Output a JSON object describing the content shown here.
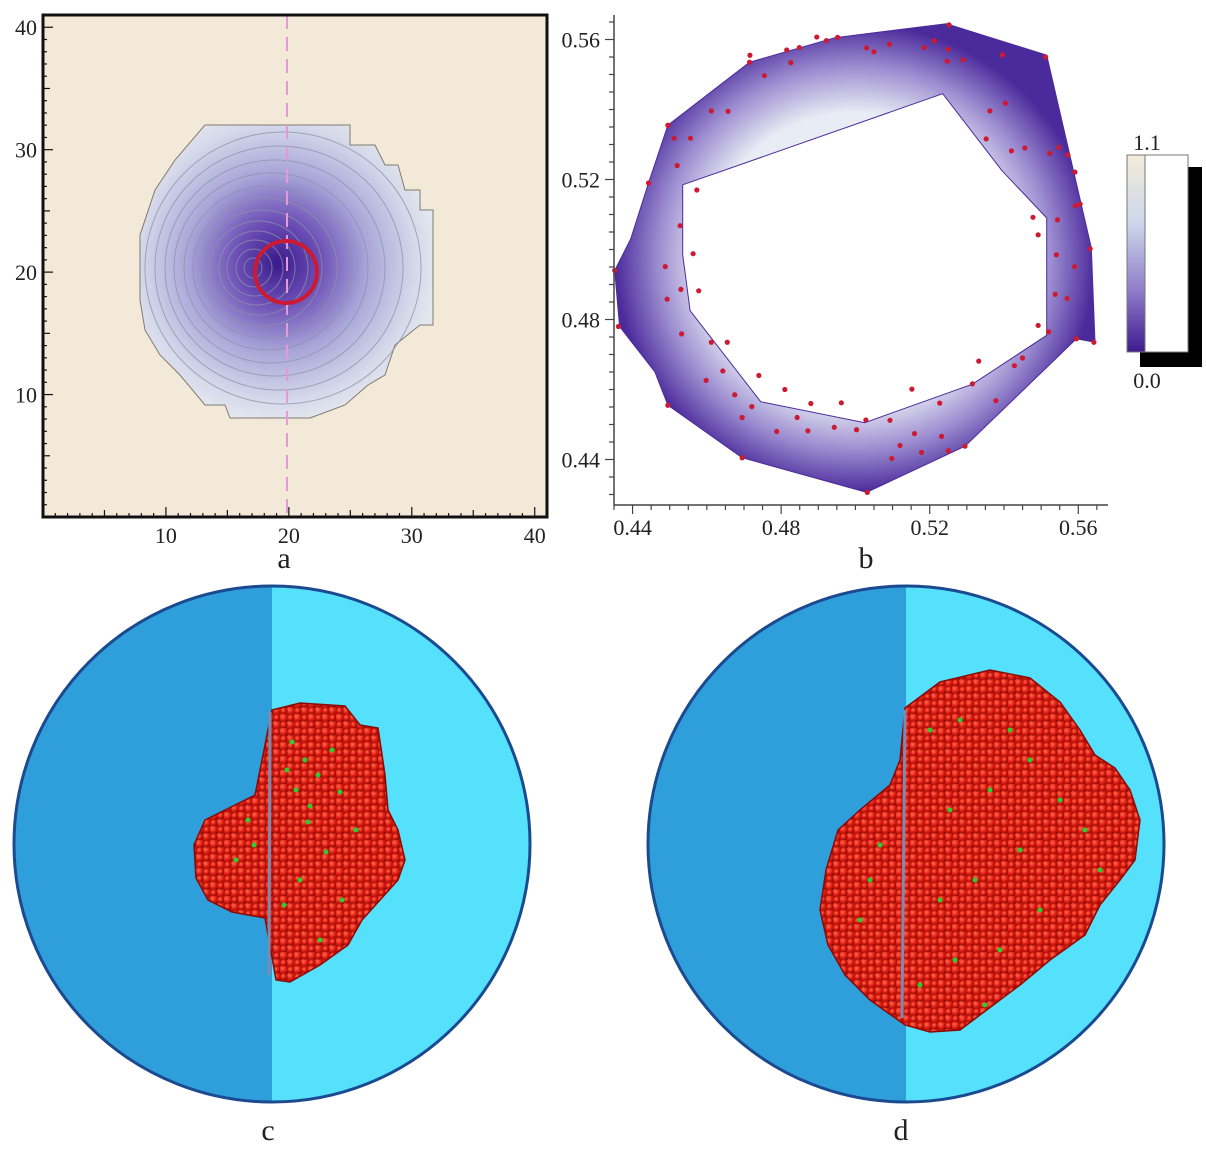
{
  "figure": {
    "panels": [
      {
        "id": "a",
        "label": "a"
      },
      {
        "id": "b",
        "label": "b"
      },
      {
        "id": "c",
        "label": "c"
      },
      {
        "id": "d",
        "label": "d"
      }
    ]
  },
  "colors": {
    "background_sand": "#f2e9d8",
    "purple_dark": "#3d1a8f",
    "purple_light": "#d8d7ee",
    "marker_red": "#cc1a33",
    "dash_pink": "#e49ad8",
    "sphere_left": "#2f9fdc",
    "sphere_right": "#55e1fb",
    "sphere_rim": "#1b4a90",
    "cluster_red": "#e01b10",
    "cluster_green": "#2ecc30"
  },
  "chart_data": [
    {
      "panel": "a",
      "type": "heatmap",
      "title": "",
      "xlabel": "",
      "ylabel": "",
      "xlim": [
        0,
        41
      ],
      "ylim": [
        0,
        41
      ],
      "xticks": [
        10,
        20,
        30,
        40
      ],
      "yticks": [
        10,
        20,
        30,
        40
      ],
      "contour_center": [
        18,
        20
      ],
      "marker_circle": {
        "center": [
          20,
          19.7
        ],
        "radius": 2.6
      },
      "dashed_line_x": 20
    },
    {
      "panel": "b",
      "type": "scatter",
      "title": "",
      "xlabel": "",
      "ylabel": "",
      "xlim": [
        0.435,
        0.568
      ],
      "ylim": [
        0.427,
        0.567
      ],
      "xticks": [
        0.44,
        0.48,
        0.52,
        0.56
      ],
      "yticks": [
        0.44,
        0.48,
        0.52,
        0.56
      ],
      "tick_labels_x": [
        "0.44",
        "0.48",
        "0.52",
        "0.56"
      ],
      "tick_labels_y": [
        "0.44",
        "0.48",
        "0.52",
        "0.56"
      ],
      "colorbar": {
        "max_label": "1.1",
        "min_label": "0.0",
        "range": [
          0.0,
          1.1
        ]
      },
      "outer_boundary": [
        [
          0.4352,
          0.494
        ],
        [
          0.4365,
          0.478
        ],
        [
          0.446,
          0.465
        ],
        [
          0.4495,
          0.4555
        ],
        [
          0.4695,
          0.4405
        ],
        [
          0.503,
          0.4306
        ],
        [
          0.5295,
          0.4438
        ],
        [
          0.5595,
          0.4745
        ],
        [
          0.5645,
          0.4735
        ],
        [
          0.5635,
          0.5005
        ],
        [
          0.5575,
          0.528
        ],
        [
          0.5515,
          0.5555
        ],
        [
          0.5245,
          0.5645
        ],
        [
          0.4945,
          0.5605
        ],
        [
          0.4715,
          0.5535
        ],
        [
          0.4495,
          0.5355
        ],
        [
          0.4443,
          0.519
        ],
        [
          0.4395,
          0.503
        ]
      ],
      "inner_boundary": [
        [
          0.4535,
          0.5185
        ],
        [
          0.5235,
          0.5445
        ],
        [
          0.5395,
          0.5225
        ],
        [
          0.5515,
          0.509
        ],
        [
          0.5515,
          0.4755
        ],
        [
          0.5315,
          0.4615
        ],
        [
          0.5025,
          0.4505
        ],
        [
          0.4745,
          0.4565
        ],
        [
          0.4555,
          0.4825
        ],
        [
          0.4535,
          0.4985
        ]
      ],
      "points": [
        [
          0.4952,
          0.5606
        ],
        [
          0.5252,
          0.5642
        ],
        [
          0.5512,
          0.555
        ],
        [
          0.5572,
          0.527
        ],
        [
          0.5632,
          0.5002
        ],
        [
          0.5642,
          0.4735
        ],
        [
          0.5595,
          0.4745
        ],
        [
          0.5295,
          0.4438
        ],
        [
          0.5032,
          0.4306
        ],
        [
          0.4695,
          0.4405
        ],
        [
          0.4495,
          0.4555
        ],
        [
          0.4362,
          0.478
        ],
        [
          0.4352,
          0.494
        ],
        [
          0.4443,
          0.519
        ],
        [
          0.4495,
          0.5355
        ],
        [
          0.4715,
          0.5535
        ],
        [
          0.4815,
          0.557
        ],
        [
          0.4896,
          0.5607
        ],
        [
          0.4755,
          0.5497
        ],
        [
          0.4612,
          0.5396
        ],
        [
          0.4512,
          0.5318
        ],
        [
          0.4573,
          0.517
        ],
        [
          0.4528,
          0.5068
        ],
        [
          0.4563,
          0.4988
        ],
        [
          0.4488,
          0.4951
        ],
        [
          0.4578,
          0.4882
        ],
        [
          0.4493,
          0.4858
        ],
        [
          0.4532,
          0.4759
        ],
        [
          0.4612,
          0.4735
        ],
        [
          0.4643,
          0.4653
        ],
        [
          0.4598,
          0.4626
        ],
        [
          0.4675,
          0.4585
        ],
        [
          0.4695,
          0.452
        ],
        [
          0.4721,
          0.4551
        ],
        [
          0.4788,
          0.448
        ],
        [
          0.4843,
          0.452
        ],
        [
          0.4872,
          0.4482
        ],
        [
          0.4943,
          0.4492
        ],
        [
          0.4962,
          0.4562
        ],
        [
          0.5003,
          0.4485
        ],
        [
          0.5028,
          0.4513
        ],
        [
          0.5093,
          0.4512
        ],
        [
          0.5098,
          0.4403
        ],
        [
          0.512,
          0.444
        ],
        [
          0.5159,
          0.4474
        ],
        [
          0.5178,
          0.442
        ],
        [
          0.5232,
          0.4466
        ],
        [
          0.525,
          0.4425
        ],
        [
          0.5315,
          0.4616
        ],
        [
          0.5378,
          0.4568
        ],
        [
          0.5428,
          0.4668
        ],
        [
          0.545,
          0.469
        ],
        [
          0.552,
          0.4765
        ],
        [
          0.5538,
          0.4872
        ],
        [
          0.559,
          0.4951
        ],
        [
          0.5541,
          0.4985
        ],
        [
          0.5492,
          0.5042
        ],
        [
          0.5544,
          0.5085
        ],
        [
          0.5592,
          0.5125
        ],
        [
          0.5591,
          0.5221
        ],
        [
          0.5523,
          0.5275
        ],
        [
          0.5548,
          0.5292
        ],
        [
          0.5456,
          0.529
        ],
        [
          0.542,
          0.5282
        ],
        [
          0.5352,
          0.5316
        ],
        [
          0.5404,
          0.5418
        ],
        [
          0.5362,
          0.5396
        ],
        [
          0.5396,
          0.5556
        ],
        [
          0.529,
          0.5542
        ],
        [
          0.5247,
          0.5538
        ],
        [
          0.5213,
          0.5596
        ],
        [
          0.525,
          0.5572
        ],
        [
          0.5185,
          0.5577
        ],
        [
          0.5092,
          0.5586
        ],
        [
          0.505,
          0.5565
        ],
        [
          0.503,
          0.5576
        ],
        [
          0.4922,
          0.5597
        ],
        [
          0.4849,
          0.5577
        ],
        [
          0.4826,
          0.5534
        ],
        [
          0.4716,
          0.5555
        ],
        [
          0.4657,
          0.5395
        ],
        [
          0.4556,
          0.5318
        ],
        [
          0.452,
          0.524
        ],
        [
          0.453,
          0.4886
        ],
        [
          0.4655,
          0.4735
        ],
        [
          0.474,
          0.464
        ],
        [
          0.481,
          0.46
        ],
        [
          0.488,
          0.456
        ],
        [
          0.5152,
          0.4601
        ],
        [
          0.5227,
          0.4561
        ],
        [
          0.5332,
          0.4681
        ],
        [
          0.5492,
          0.4783
        ],
        [
          0.557,
          0.486
        ],
        [
          0.5478,
          0.5092
        ],
        [
          0.5605,
          0.513
        ]
      ]
    }
  ]
}
